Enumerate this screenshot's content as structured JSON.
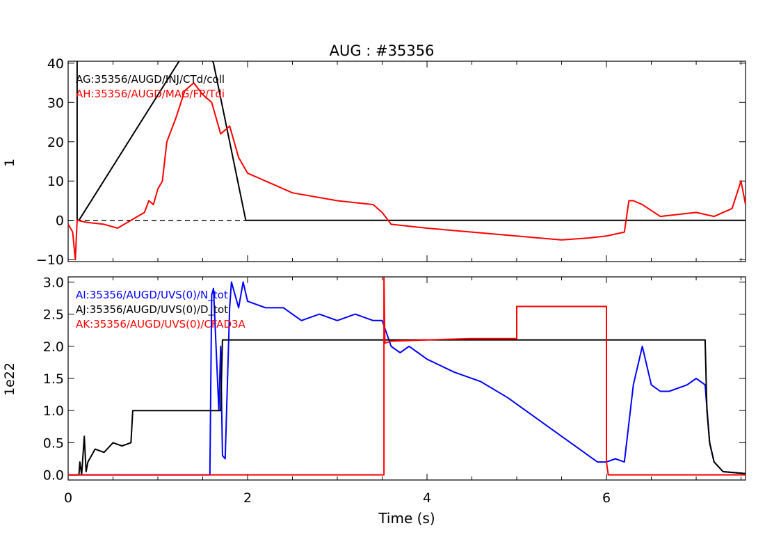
{
  "chart_data": {
    "title": "AUG : #35356",
    "xlabel": "Time (s)",
    "x_ticks": [
      "0",
      "2",
      "4",
      "6"
    ],
    "x_tick_values": [
      0,
      2,
      4,
      6
    ],
    "xlim": [
      0,
      7.55
    ],
    "panels": [
      {
        "type": "line",
        "ylabel": "1",
        "ylim": [
          -10.5,
          40.5
        ],
        "y_ticks": [
          "−10",
          "0",
          "10",
          "20",
          "30",
          "40"
        ],
        "y_tick_values": [
          -10,
          0,
          10,
          20,
          30,
          40
        ],
        "reference_line": {
          "y": 0,
          "style": "dashed",
          "color": "#000000"
        },
        "series": [
          {
            "name": "AG:35356/AUGD/INJ/CTd/coll",
            "color": "#000000",
            "x": [
              0.1,
              0.1,
              0.1,
              0.11,
              0.12,
              1.25,
              1.6,
              1.62,
              1.98,
              2.0,
              7.55
            ],
            "y": [
              0,
              60,
              0,
              0,
              0,
              41,
              41,
              40,
              0,
              0,
              0
            ]
          },
          {
            "name": "AH:35356/AUGD/MAG/FP/Tdi",
            "color": "#ff0000",
            "x": [
              0.0,
              0.05,
              0.08,
              0.1,
              0.2,
              0.4,
              0.55,
              0.7,
              0.85,
              0.9,
              0.95,
              1.0,
              1.05,
              1.1,
              1.2,
              1.3,
              1.4,
              1.5,
              1.6,
              1.7,
              1.8,
              1.85,
              1.9,
              2.0,
              2.2,
              2.5,
              3.0,
              3.4,
              3.5,
              3.6,
              4.0,
              4.5,
              5.0,
              5.5,
              5.8,
              6.0,
              6.2,
              6.25,
              6.3,
              6.4,
              6.6,
              7.0,
              7.2,
              7.3,
              7.4,
              7.5,
              7.55
            ],
            "y": [
              -1,
              -3,
              -10,
              0,
              -0.5,
              -1,
              -2,
              0,
              2,
              5,
              4,
              8,
              10,
              20,
              26,
              33,
              35,
              32,
              30,
              22,
              24,
              20,
              16,
              12,
              10,
              7,
              5,
              4,
              2,
              -1,
              -2,
              -3,
              -4,
              -5,
              -4.5,
              -4,
              -3,
              5,
              5,
              4,
              1,
              2,
              1,
              2,
              3,
              10,
              4
            ]
          }
        ]
      },
      {
        "type": "line",
        "ylabel": "1e22",
        "ylim": [
          -0.08,
          3.08
        ],
        "y_ticks": [
          "0.0",
          "0.5",
          "1.0",
          "1.5",
          "2.0",
          "2.5",
          "3.0"
        ],
        "y_tick_values": [
          0,
          0.5,
          1,
          1.5,
          2,
          2.5,
          3
        ],
        "series": [
          {
            "name": "AI:35356/AUGD/UVS(0)/N_tot",
            "color": "#0000ff",
            "x": [
              0.0,
              1.58,
              1.6,
              1.62,
              1.68,
              1.7,
              1.72,
              1.75,
              1.8,
              1.82,
              1.9,
              1.95,
              2.0,
              2.2,
              2.4,
              2.6,
              2.8,
              3.0,
              3.2,
              3.4,
              3.5,
              3.55,
              3.6,
              3.7,
              3.8,
              3.9,
              4.0,
              4.3,
              4.6,
              4.9,
              5.2,
              5.5,
              5.7,
              5.8,
              5.9,
              6.0,
              6.1,
              6.2,
              6.3,
              6.4,
              6.5,
              6.6,
              6.7,
              6.9,
              7.0,
              7.1,
              7.15,
              7.2,
              7.3,
              7.55
            ],
            "y": [
              0.0,
              0.0,
              2.8,
              2.9,
              1.0,
              2.0,
              0.3,
              0.25,
              2.6,
              3.0,
              2.6,
              3.0,
              2.7,
              2.6,
              2.6,
              2.4,
              2.5,
              2.4,
              2.5,
              2.4,
              2.4,
              2.2,
              2.0,
              1.9,
              2.0,
              1.9,
              1.8,
              1.6,
              1.45,
              1.2,
              0.9,
              0.6,
              0.4,
              0.3,
              0.2,
              0.2,
              0.25,
              0.2,
              1.4,
              2.0,
              1.4,
              1.3,
              1.3,
              1.4,
              1.5,
              1.4,
              0.5,
              0.2,
              0.05,
              0.02
            ]
          },
          {
            "name": "AJ:35356/AUGD/UVS(0)/D_tot",
            "color": "#000000",
            "x": [
              0.0,
              0.12,
              0.13,
              0.15,
              0.18,
              0.2,
              0.22,
              0.3,
              0.4,
              0.5,
              0.6,
              0.7,
              0.72,
              0.8,
              1.0,
              1.2,
              1.4,
              1.6,
              1.7,
              1.72,
              1.73,
              1.8,
              2.0,
              2.5,
              3.0,
              3.5,
              4.0,
              5.0,
              6.0,
              7.0,
              7.1,
              7.12,
              7.15,
              7.2,
              7.3,
              7.55
            ],
            "y": [
              0.0,
              0.0,
              0.2,
              0.0,
              0.6,
              0.05,
              0.2,
              0.4,
              0.35,
              0.5,
              0.45,
              0.5,
              1.0,
              1.0,
              1.0,
              1.0,
              1.0,
              1.0,
              1.0,
              2.1,
              2.1,
              2.1,
              2.1,
              2.1,
              2.1,
              2.1,
              2.1,
              2.1,
              2.1,
              2.1,
              2.1,
              1.0,
              0.5,
              0.2,
              0.05,
              0.02
            ]
          },
          {
            "name": "AK:35356/AUGD/UVS(0)/CFAD3A",
            "color": "#ff0000",
            "x": [
              0.0,
              3.52,
              3.52,
              3.53,
              3.6,
              4.0,
              4.5,
              5.0,
              5.0,
              5.5,
              6.0,
              6.0,
              6.02,
              7.55
            ],
            "y": [
              0.0,
              0.0,
              3.1,
              2.05,
              2.08,
              2.1,
              2.12,
              2.12,
              2.62,
              2.62,
              2.62,
              0.2,
              0.0,
              0.0
            ]
          }
        ]
      }
    ]
  }
}
